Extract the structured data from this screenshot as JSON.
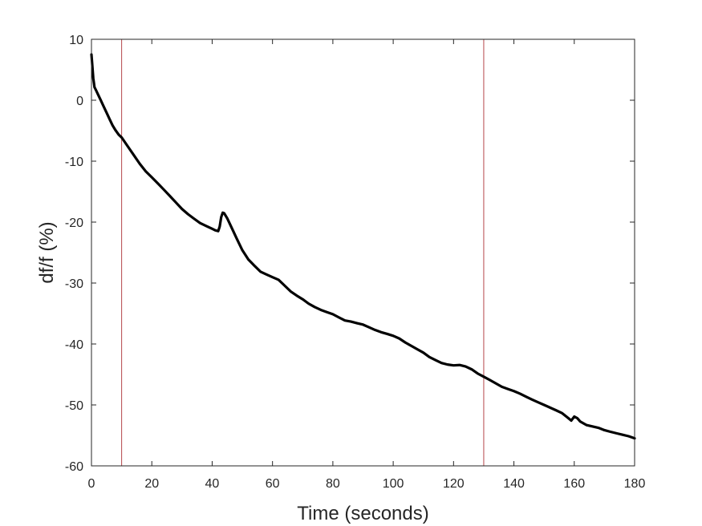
{
  "chart_data": {
    "type": "line",
    "title": "",
    "xlabel": "Time (seconds)",
    "ylabel": "df/f (%)",
    "xlim": [
      0,
      180
    ],
    "ylim": [
      -60,
      10
    ],
    "xticks": [
      0,
      20,
      40,
      60,
      80,
      100,
      120,
      140,
      160,
      180
    ],
    "yticks": [
      10,
      0,
      -10,
      -20,
      -30,
      -40,
      -50,
      -60
    ],
    "grid": false,
    "legend": "none",
    "colors": {
      "line": "#000000",
      "marker_line": "#b5474b",
      "axis": "#262626"
    },
    "vertical_lines": [
      10,
      130
    ],
    "series": [
      {
        "x": [
          0,
          0.3,
          0.6,
          1,
          1.5,
          2,
          3,
          4,
          5,
          6,
          7,
          8,
          9,
          10,
          12,
          14,
          16,
          18,
          20,
          22,
          24,
          26,
          28,
          30,
          32,
          34,
          36,
          38,
          40,
          41,
          42,
          42.5,
          43,
          43.5,
          44,
          45,
          46,
          47,
          48,
          50,
          52,
          54,
          56,
          58,
          60,
          62,
          64,
          66,
          68,
          70,
          72,
          74,
          76,
          78,
          80,
          82,
          84,
          86,
          88,
          90,
          92,
          94,
          96,
          98,
          100,
          102,
          104,
          106,
          108,
          110,
          112,
          114,
          116,
          118,
          120,
          122,
          124,
          126,
          128,
          130,
          132,
          134,
          136,
          138,
          140,
          142,
          144,
          146,
          148,
          150,
          152,
          154,
          156,
          158,
          159,
          160,
          161,
          162,
          164,
          166,
          168,
          170,
          172,
          174,
          176,
          178,
          180
        ],
        "y": [
          7.5,
          5.5,
          3.5,
          2,
          1.5,
          1,
          0,
          -1,
          -2,
          -3,
          -4,
          -4.8,
          -5.5,
          -6,
          -7.5,
          -9,
          -10.5,
          -11.8,
          -12.8,
          -13.8,
          -14.8,
          -15.8,
          -16.8,
          -17.8,
          -18.6,
          -19.3,
          -20,
          -20.5,
          -21,
          -21.3,
          -21.5,
          -20.8,
          -19.3,
          -18.6,
          -18.7,
          -19.5,
          -20.5,
          -21.5,
          -22.5,
          -24.5,
          -26,
          -27,
          -28,
          -28.5,
          -29,
          -29.5,
          -30.5,
          -31.5,
          -32.2,
          -32.8,
          -33.5,
          -34,
          -34.4,
          -34.7,
          -35,
          -35.5,
          -36,
          -36.2,
          -36.5,
          -36.8,
          -37.3,
          -37.8,
          -38.2,
          -38.5,
          -38.8,
          -39.2,
          -39.8,
          -40.3,
          -40.8,
          -41.3,
          -42,
          -42.5,
          -43,
          -43.3,
          -43.5,
          -43.5,
          -43.8,
          -44.3,
          -45,
          -45.5,
          -46,
          -46.5,
          -47,
          -47.3,
          -47.6,
          -48,
          -48.5,
          -49,
          -49.5,
          -50,
          -50.5,
          -51,
          -51.5,
          -52.3,
          -52.7,
          -52,
          -52.2,
          -52.7,
          -53.2,
          -53.4,
          -53.6,
          -54,
          -54.3,
          -54.6,
          -54.9,
          -55.2,
          -55.6
        ]
      }
    ]
  }
}
